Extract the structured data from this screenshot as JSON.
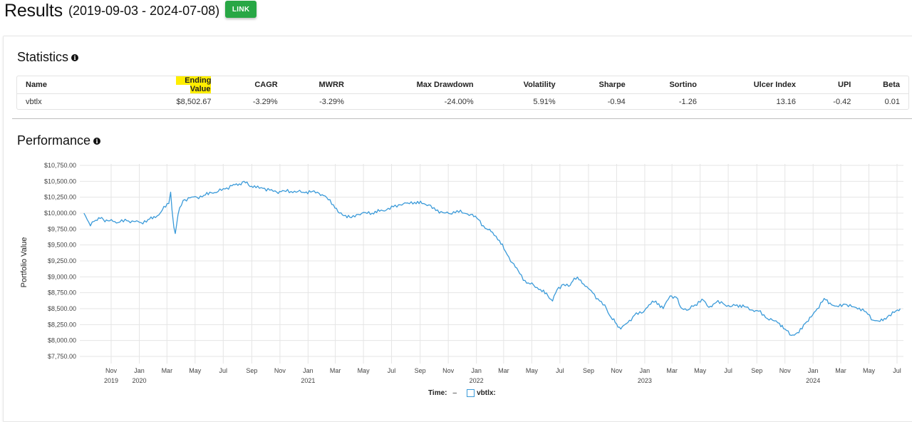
{
  "header": {
    "title": "Results",
    "date_range": "(2019-09-03 - 2024-07-08)",
    "link_button": "LINK"
  },
  "statistics": {
    "title": "Statistics",
    "columns": [
      "Name",
      "Ending Value",
      "CAGR",
      "MWRR",
      "Max Drawdown",
      "Volatility",
      "Sharpe",
      "Sortino",
      "Ulcer Index",
      "UPI",
      "Beta"
    ],
    "highlighted_column": "Ending Value",
    "rows": [
      [
        "vbtlx",
        "$8,502.67",
        "-3.29%",
        "-3.29%",
        "-24.00%",
        "5.91%",
        "-0.94",
        "-1.26",
        "13.16",
        "-0.42",
        "0.01"
      ]
    ]
  },
  "performance": {
    "title": "Performance",
    "legend": {
      "time_label": "Time:",
      "time_value": "–",
      "series_label": "vbtlx:"
    }
  },
  "colors": {
    "line": "#3a9ad9",
    "link_button": "#28a745",
    "highlight": "#ffee00",
    "grid": "#e5e5e5"
  },
  "chart_data": {
    "type": "line",
    "title": "Performance",
    "xlabel": "Time",
    "ylabel": "Portfolio Value",
    "ylim": [
      7750,
      10750
    ],
    "grid": true,
    "legend_position": "bottom",
    "y_ticks": [
      "$10,750.00",
      "$10,500.00",
      "$10,250.00",
      "$10,000.00",
      "$9,750.00",
      "$9,500.00",
      "$9,250.00",
      "$9,000.00",
      "$8,750.00",
      "$8,500.00",
      "$8,250.00",
      "$8,000.00",
      "$7,750.00"
    ],
    "x_ticks": [
      {
        "m": "Nov",
        "y": "2019"
      },
      {
        "m": "Jan",
        "y": "2020"
      },
      {
        "m": "Mar",
        "y": ""
      },
      {
        "m": "May",
        "y": ""
      },
      {
        "m": "Jul",
        "y": ""
      },
      {
        "m": "Sep",
        "y": ""
      },
      {
        "m": "Nov",
        "y": ""
      },
      {
        "m": "Jan",
        "y": "2021"
      },
      {
        "m": "Mar",
        "y": ""
      },
      {
        "m": "May",
        "y": ""
      },
      {
        "m": "Jul",
        "y": ""
      },
      {
        "m": "Sep",
        "y": ""
      },
      {
        "m": "Nov",
        "y": ""
      },
      {
        "m": "Jan",
        "y": "2022"
      },
      {
        "m": "Mar",
        "y": ""
      },
      {
        "m": "May",
        "y": ""
      },
      {
        "m": "Jul",
        "y": ""
      },
      {
        "m": "Sep",
        "y": ""
      },
      {
        "m": "Nov",
        "y": ""
      },
      {
        "m": "Jan",
        "y": "2023"
      },
      {
        "m": "Mar",
        "y": ""
      },
      {
        "m": "May",
        "y": ""
      },
      {
        "m": "Jul",
        "y": ""
      },
      {
        "m": "Sep",
        "y": ""
      },
      {
        "m": "Nov",
        "y": ""
      },
      {
        "m": "Jan",
        "y": "2024"
      },
      {
        "m": "Mar",
        "y": ""
      },
      {
        "m": "May",
        "y": ""
      },
      {
        "m": "Jul",
        "y": ""
      }
    ],
    "series": [
      {
        "name": "vbtlx",
        "x": [
          "2019-09-03",
          "2019-09-10",
          "2019-09-17",
          "2019-09-25",
          "2019-10-05",
          "2019-10-15",
          "2019-10-25",
          "2019-11-05",
          "2019-11-20",
          "2019-12-05",
          "2019-12-20",
          "2020-01-05",
          "2020-01-20",
          "2020-02-05",
          "2020-02-20",
          "2020-03-05",
          "2020-03-09",
          "2020-03-12",
          "2020-03-16",
          "2020-03-19",
          "2020-03-25",
          "2020-04-05",
          "2020-04-20",
          "2020-05-05",
          "2020-05-20",
          "2020-06-05",
          "2020-06-20",
          "2020-07-05",
          "2020-07-20",
          "2020-08-05",
          "2020-08-15",
          "2020-08-25",
          "2020-09-10",
          "2020-09-25",
          "2020-10-10",
          "2020-10-25",
          "2020-11-10",
          "2020-11-25",
          "2020-12-10",
          "2020-12-25",
          "2021-01-10",
          "2021-01-25",
          "2021-02-10",
          "2021-02-25",
          "2021-03-10",
          "2021-03-20",
          "2021-04-05",
          "2021-04-20",
          "2021-05-05",
          "2021-05-20",
          "2021-06-05",
          "2021-06-20",
          "2021-07-05",
          "2021-07-20",
          "2021-08-05",
          "2021-08-20",
          "2021-09-05",
          "2021-09-20",
          "2021-10-05",
          "2021-10-20",
          "2021-11-05",
          "2021-11-20",
          "2021-12-05",
          "2021-12-20",
          "2022-01-05",
          "2022-01-20",
          "2022-02-05",
          "2022-02-20",
          "2022-03-05",
          "2022-03-20",
          "2022-04-05",
          "2022-04-20",
          "2022-05-05",
          "2022-05-20",
          "2022-06-05",
          "2022-06-15",
          "2022-06-25",
          "2022-07-05",
          "2022-07-20",
          "2022-08-01",
          "2022-08-15",
          "2022-08-25",
          "2022-09-10",
          "2022-09-25",
          "2022-10-10",
          "2022-10-20",
          "2022-11-01",
          "2022-11-10",
          "2022-11-25",
          "2022-12-10",
          "2022-12-25",
          "2023-01-10",
          "2023-01-25",
          "2023-02-10",
          "2023-02-25",
          "2023-03-10",
          "2023-03-20",
          "2023-04-05",
          "2023-04-20",
          "2023-05-05",
          "2023-05-20",
          "2023-06-05",
          "2023-06-20",
          "2023-07-05",
          "2023-07-20",
          "2023-08-05",
          "2023-08-20",
          "2023-09-05",
          "2023-09-20",
          "2023-10-05",
          "2023-10-20",
          "2023-11-01",
          "2023-11-15",
          "2023-12-01",
          "2023-12-15",
          "2023-12-28",
          "2024-01-10",
          "2024-01-25",
          "2024-02-10",
          "2024-02-25",
          "2024-03-10",
          "2024-03-25",
          "2024-04-10",
          "2024-04-25",
          "2024-05-10",
          "2024-05-25",
          "2024-06-10",
          "2024-06-25",
          "2024-07-02",
          "2024-07-08"
        ],
        "values": [
          10000,
          9900,
          9800,
          9870,
          9930,
          9900,
          9880,
          9870,
          9860,
          9880,
          9870,
          9850,
          9900,
          9930,
          10050,
          10150,
          10330,
          10050,
          9780,
          9680,
          9980,
          10200,
          10240,
          10250,
          10280,
          10320,
          10340,
          10380,
          10430,
          10460,
          10500,
          10440,
          10400,
          10390,
          10360,
          10330,
          10350,
          10340,
          10340,
          10320,
          10340,
          10310,
          10250,
          10130,
          10000,
          9960,
          9930,
          9980,
          10010,
          10000,
          10030,
          10050,
          10100,
          10130,
          10160,
          10170,
          10150,
          10130,
          10040,
          10010,
          9990,
          10040,
          10000,
          9980,
          9900,
          9760,
          9700,
          9570,
          9400,
          9220,
          9050,
          8900,
          8870,
          8800,
          8700,
          8620,
          8800,
          8870,
          8850,
          8980,
          8950,
          8850,
          8750,
          8620,
          8500,
          8360,
          8260,
          8180,
          8280,
          8400,
          8430,
          8560,
          8620,
          8500,
          8700,
          8680,
          8520,
          8480,
          8560,
          8650,
          8520,
          8600,
          8580,
          8530,
          8560,
          8530,
          8480,
          8460,
          8360,
          8320,
          8270,
          8180,
          8080,
          8120,
          8270,
          8370,
          8500,
          8660,
          8560,
          8530,
          8570,
          8530,
          8510,
          8450,
          8320,
          8300,
          8370,
          8440,
          8480,
          8500
        ]
      }
    ]
  }
}
